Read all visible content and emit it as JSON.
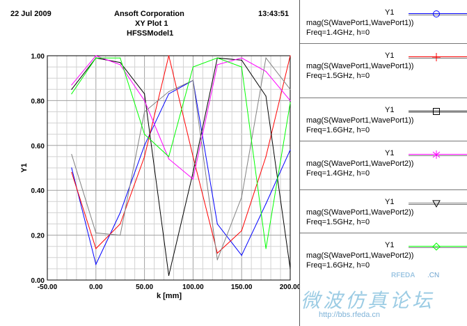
{
  "header": {
    "date": "22 Jul 2009",
    "company": "Ansoft Corporation",
    "plot_title": "XY Plot 1",
    "model": "HFSSModel1",
    "time": "13:43:51"
  },
  "watermark": {
    "chinese_text": "微波仿真论坛",
    "url": "http://bbs.rfeda.cn",
    "rfeda": "RFEDA",
    "domain": ".CN"
  },
  "chart_data": {
    "type": "line",
    "title": "XY Plot 1",
    "xlabel": "k [mm]",
    "ylabel": "Y1",
    "xlim": [
      -50,
      200
    ],
    "ylim": [
      0,
      1
    ],
    "grid": true,
    "legend_position": "right",
    "x_ticks": [
      "-50.00",
      "0.00",
      "50.00",
      "100.00",
      "150.00",
      "200.00"
    ],
    "y_ticks": [
      "0.00",
      "0.20",
      "0.40",
      "0.60",
      "0.80",
      "1.00"
    ],
    "x": [
      -25,
      0,
      25,
      50,
      75,
      100,
      125,
      150,
      175,
      200
    ],
    "series": [
      {
        "name": "Y1",
        "expression": "mag(S(WavePort1,WavePort1))",
        "freq": "Freq=1.4GHz, h=0",
        "color": "#0000ff",
        "marker": "circle",
        "values": [
          0.5,
          0.07,
          0.3,
          0.6,
          0.83,
          0.89,
          0.25,
          0.11,
          0.34,
          0.58
        ]
      },
      {
        "name": "Y1",
        "expression": "mag(S(WavePort1,WavePort1))",
        "freq": "Freq=1.5GHz, h=0",
        "color": "#ff0000",
        "marker": "plus",
        "values": [
          0.48,
          0.14,
          0.25,
          0.55,
          1.0,
          0.55,
          0.12,
          0.22,
          0.55,
          1.0
        ]
      },
      {
        "name": "Y1",
        "expression": "mag(S(WavePort1,WavePort1))",
        "freq": "Freq=1.6GHz, h=0",
        "color": "#000000",
        "marker": "square",
        "values": [
          0.85,
          0.99,
          0.97,
          0.83,
          0.02,
          0.48,
          0.99,
          0.98,
          0.82,
          0.05
        ]
      },
      {
        "name": "Y1",
        "expression": "mag(S(WavePort1,WavePort2))",
        "freq": "Freq=1.4GHz, h=0",
        "color": "#ff00ff",
        "marker": "asterisk",
        "values": [
          0.87,
          1.0,
          0.96,
          0.8,
          0.54,
          0.45,
          0.96,
          0.99,
          0.93,
          0.8
        ]
      },
      {
        "name": "Y1",
        "expression": "mag(S(WavePort1,WavePort2))",
        "freq": "Freq=1.5GHz, h=0",
        "color": "#808080",
        "marker": "triangle-down",
        "values": [
          0.56,
          0.21,
          0.2,
          0.75,
          0.84,
          0.89,
          0.09,
          0.37,
          0.99,
          0.85
        ]
      },
      {
        "name": "Y1",
        "expression": "mag(S(WavePort1,WavePort2))",
        "freq": "Freq=1.6GHz, h=0",
        "color": "#00ff00",
        "marker": "diamond",
        "values": [
          0.83,
          0.99,
          0.99,
          0.65,
          0.55,
          0.95,
          0.99,
          0.95,
          0.14,
          0.79
        ]
      }
    ]
  }
}
